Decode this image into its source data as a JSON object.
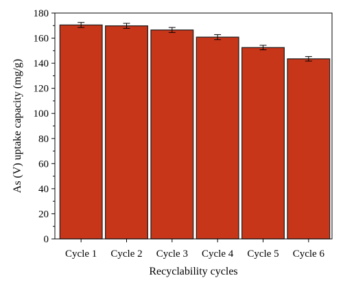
{
  "chart_data": {
    "type": "bar",
    "categories": [
      "Cycle 1",
      "Cycle 2",
      "Cycle 3",
      "Cycle 4",
      "Cycle 5",
      "Cycle 6"
    ],
    "values": [
      170.5,
      169.8,
      166.5,
      160.8,
      152.5,
      143.5
    ],
    "errors": [
      2.0,
      2.0,
      2.0,
      2.0,
      1.8,
      1.8
    ],
    "title": "",
    "xlabel": "Recyclability cycles",
    "ylabel": "As (V) uptake capacity (mg/g)",
    "ylim": [
      0,
      180
    ],
    "yticks": [
      0,
      20,
      40,
      60,
      80,
      100,
      120,
      140,
      160,
      180
    ],
    "grid": false,
    "legend": "none",
    "colors": {
      "bar_fill": "#c8361a",
      "bar_stroke": "#1a1a1a",
      "axis": "#000000"
    }
  }
}
